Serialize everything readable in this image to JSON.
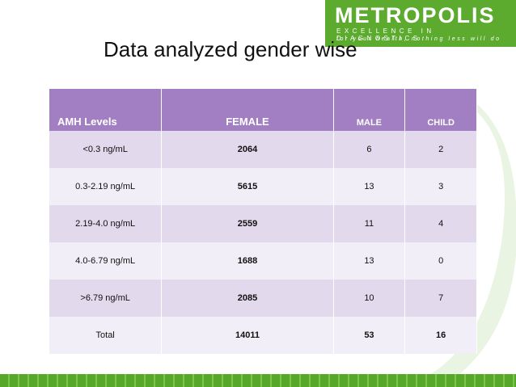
{
  "logo": {
    "name": "METROPOLIS",
    "tagline": "EXCELLENCE IN DIAGNOSTICS",
    "motto": "for your health, nothing less will do"
  },
  "title": "Data analyzed gender wise",
  "table": {
    "columns": [
      "AMH Levels",
      "FEMALE",
      "MALE",
      "CHILD"
    ],
    "rows": [
      [
        "<0.3 ng/mL",
        "2064",
        "6",
        "2"
      ],
      [
        "0.3-2.19 ng/mL",
        "5615",
        "13",
        "3"
      ],
      [
        "2.19-4.0 ng/mL",
        "2559",
        "11",
        "4"
      ],
      [
        "4.0-6.79 ng/mL",
        "1688",
        "13",
        "0"
      ],
      [
        ">6.79 ng/mL",
        "2085",
        "10",
        "7"
      ],
      [
        "Total",
        "14011",
        "53",
        "16"
      ]
    ]
  }
}
